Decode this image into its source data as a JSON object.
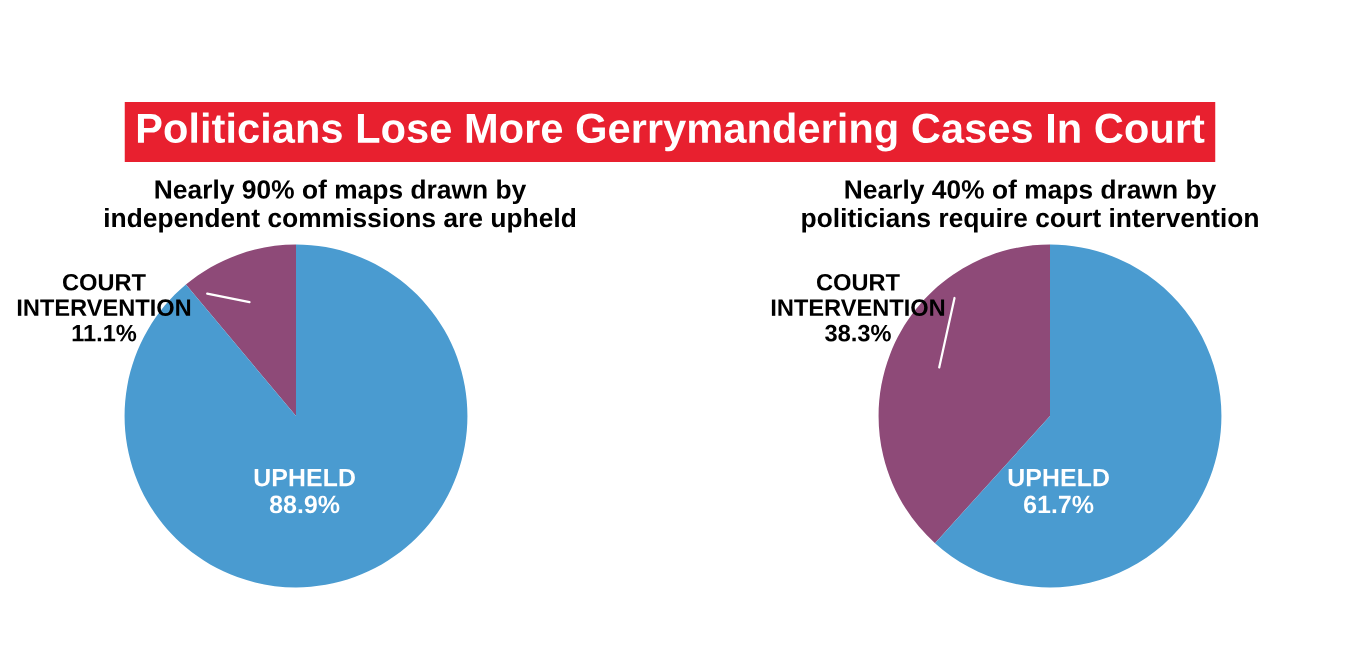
{
  "chart_data": [
    {
      "type": "pie",
      "title": "Politicians Lose More Gerrymandering Cases In Court",
      "subtitle": "Nearly 90% of maps drawn by\nindependent commissions are upheld",
      "categories": [
        "COURT\nINTERVENTION",
        "UPHELD"
      ],
      "values": [
        11.1,
        88.9
      ],
      "colors": [
        "#8e4a78",
        "#4a9bd0"
      ],
      "value_labels": [
        "11.1%",
        "88.9%"
      ]
    },
    {
      "type": "pie",
      "subtitle": "Nearly 40% of maps drawn by\npoliticians require court intervention",
      "categories": [
        "COURT\nINTERVENTION",
        "UPHELD"
      ],
      "values": [
        38.3,
        61.7
      ],
      "colors": [
        "#8e4a78",
        "#4a9bd0"
      ],
      "value_labels": [
        "38.3%",
        "61.7%"
      ]
    }
  ]
}
